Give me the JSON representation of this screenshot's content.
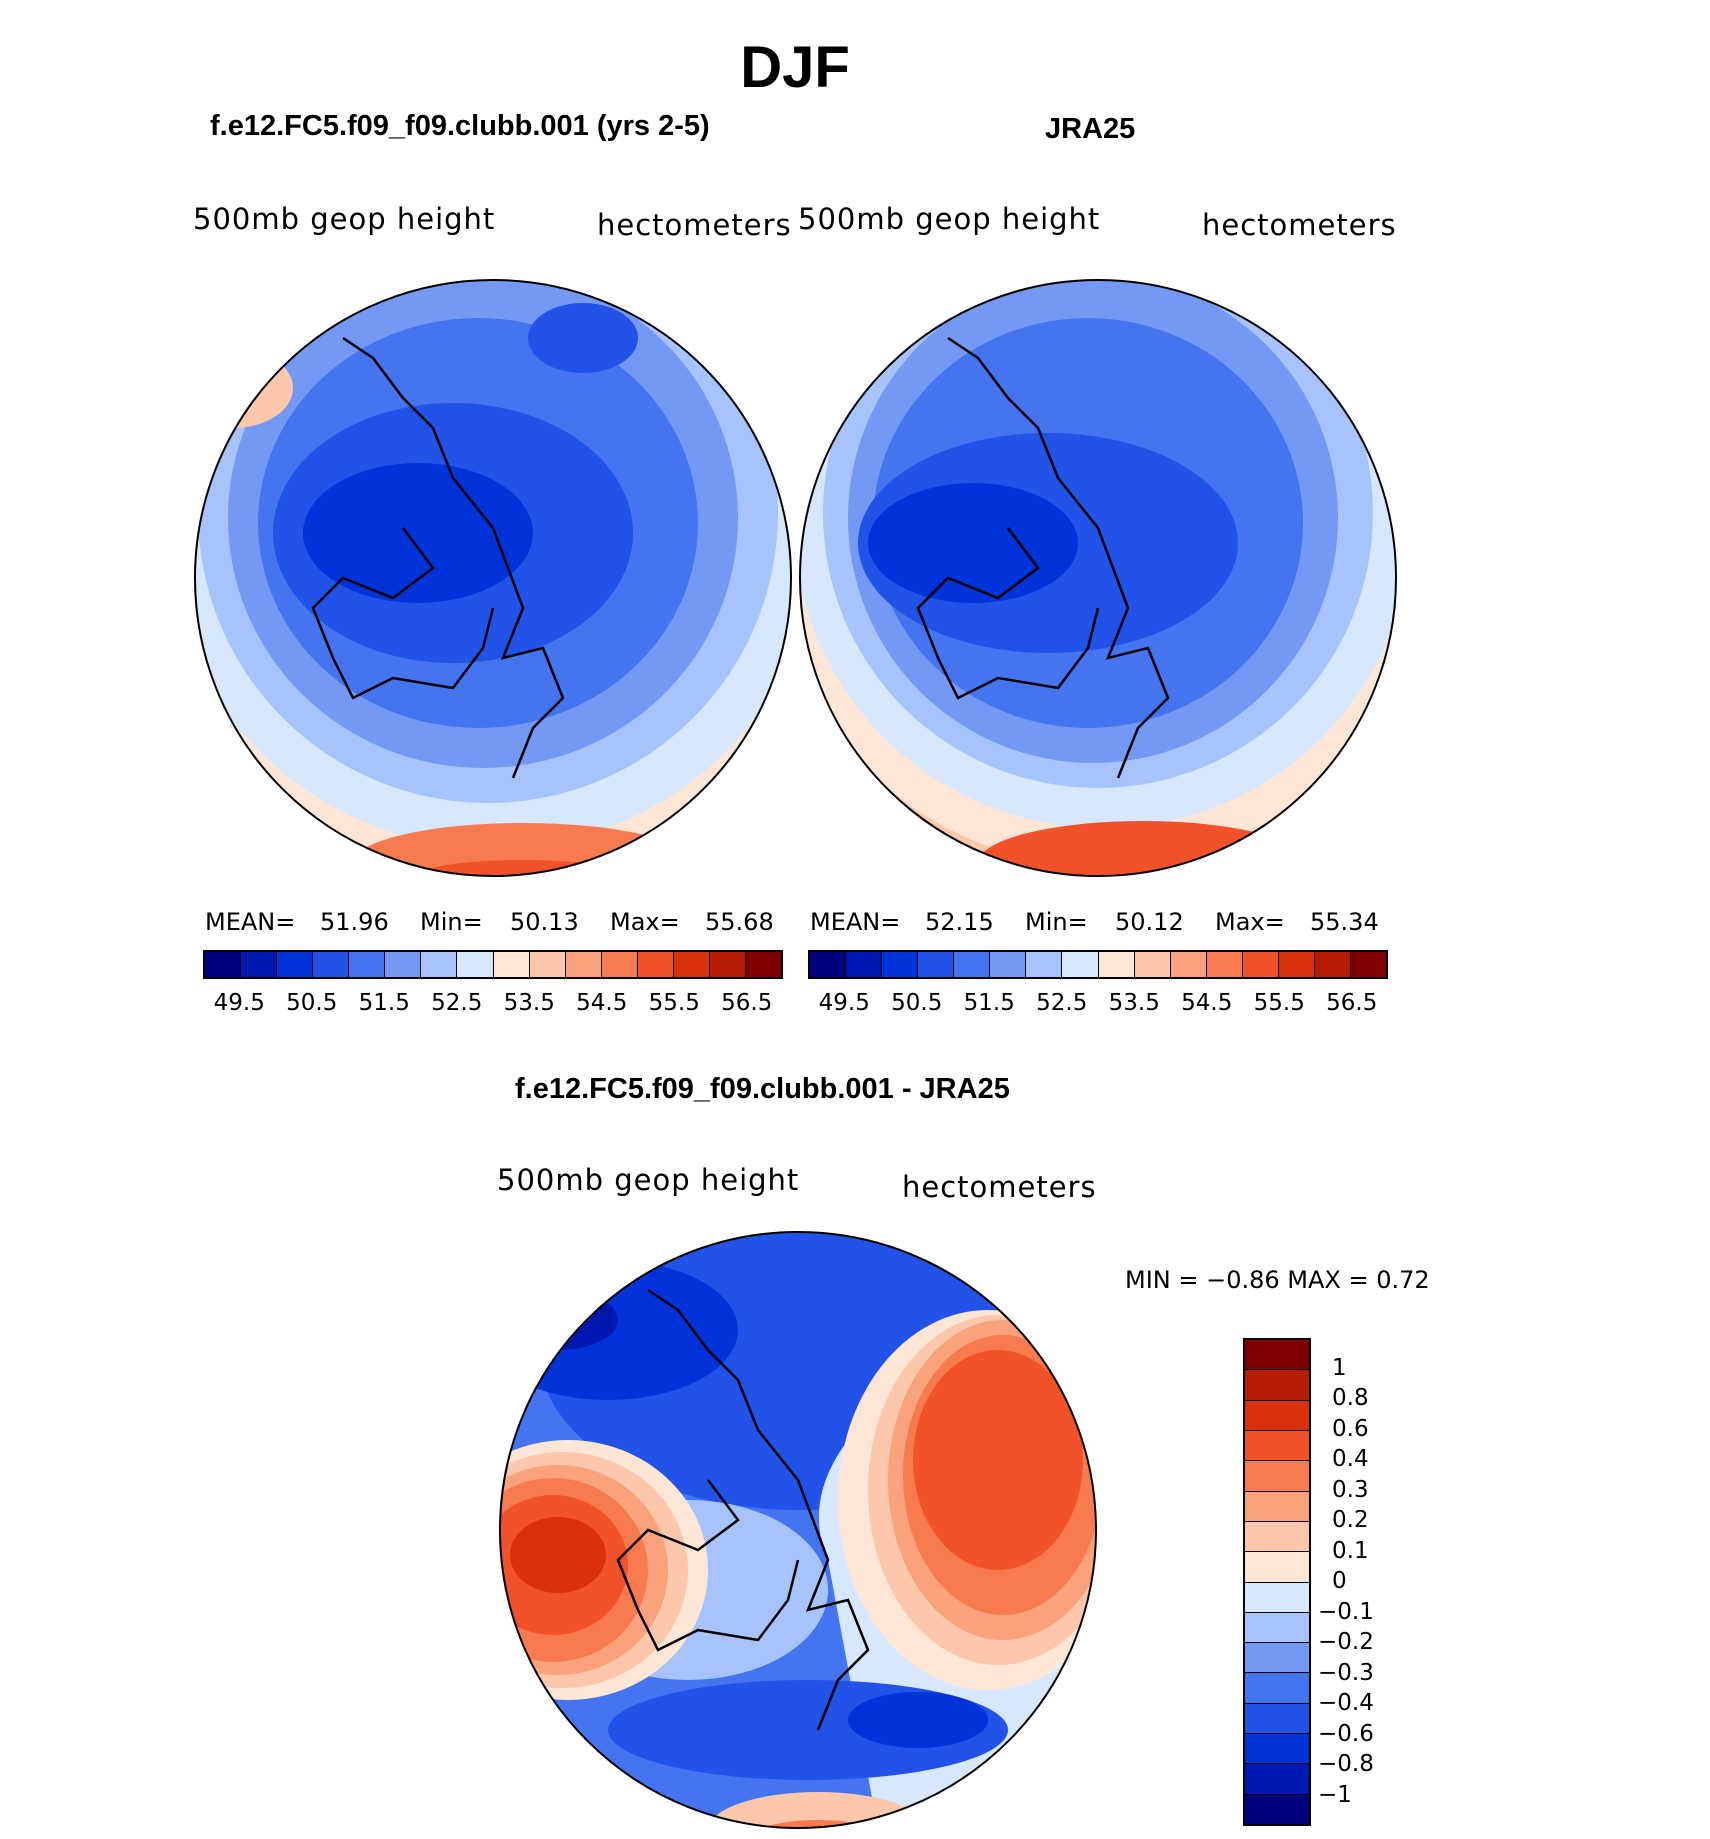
{
  "title": "DJF",
  "colors": {
    "scale_16": [
      "#01007f",
      "#0018b2",
      "#0033d9",
      "#2153e9",
      "#4474ef",
      "#7499f5",
      "#a6c4fb",
      "#d7e7fd",
      "#fde6d6",
      "#fcc7ab",
      "#f9a27c",
      "#f77b4e",
      "#f1522a",
      "#d9310c",
      "#b41d01",
      "#800000"
    ],
    "diff_15": [
      "#01007f",
      "#0018b2",
      "#0033d9",
      "#2153e9",
      "#4474ef",
      "#7499f5",
      "#a6c4fb",
      "#d7e7fd",
      "#fde6d6",
      "#fcc7ab",
      "#f9a27c",
      "#f77b4e",
      "#f1522a",
      "#d9310c",
      "#b41d01",
      "#800000"
    ]
  },
  "panels": [
    {
      "id": "model",
      "subtitle": "f.e12.FC5.f09_f09.clubb.001 (yrs 2-5)",
      "left_label": "500mb  geop  height",
      "right_label": "hectometers",
      "stats": {
        "mean_label": "MEAN=",
        "mean": "51.96",
        "min_label": "Min=",
        "min": "50.13",
        "max_label": "Max=",
        "max": "55.68"
      },
      "colorbar_ticks": [
        "49.5",
        "50.5",
        "51.5",
        "52.5",
        "53.5",
        "54.5",
        "55.5",
        "56.5"
      ]
    },
    {
      "id": "obs",
      "subtitle": "JRA25",
      "left_label": "500mb  geop  height",
      "right_label": "hectometers",
      "stats": {
        "mean_label": "MEAN=",
        "mean": "52.15",
        "min_label": "Min=",
        "min": "50.12",
        "max_label": "Max=",
        "max": "55.34"
      },
      "colorbar_ticks": [
        "49.5",
        "50.5",
        "51.5",
        "52.5",
        "53.5",
        "54.5",
        "55.5",
        "56.5"
      ]
    }
  ],
  "difference": {
    "subtitle": "f.e12.FC5.f09_f09.clubb.001 - JRA25",
    "left_label": "500mb  geop  height",
    "right_label": "hectometers",
    "minmax_text": "MIN =   −0.86  MAX =    0.72",
    "colorbar_ticks": [
      "−1",
      "−0.8",
      "−0.6",
      "−0.4",
      "−0.3",
      "−0.2",
      "−0.1",
      "0",
      "0.1",
      "0.2",
      "0.3",
      "0.4",
      "0.6",
      "0.8",
      "1"
    ]
  }
}
